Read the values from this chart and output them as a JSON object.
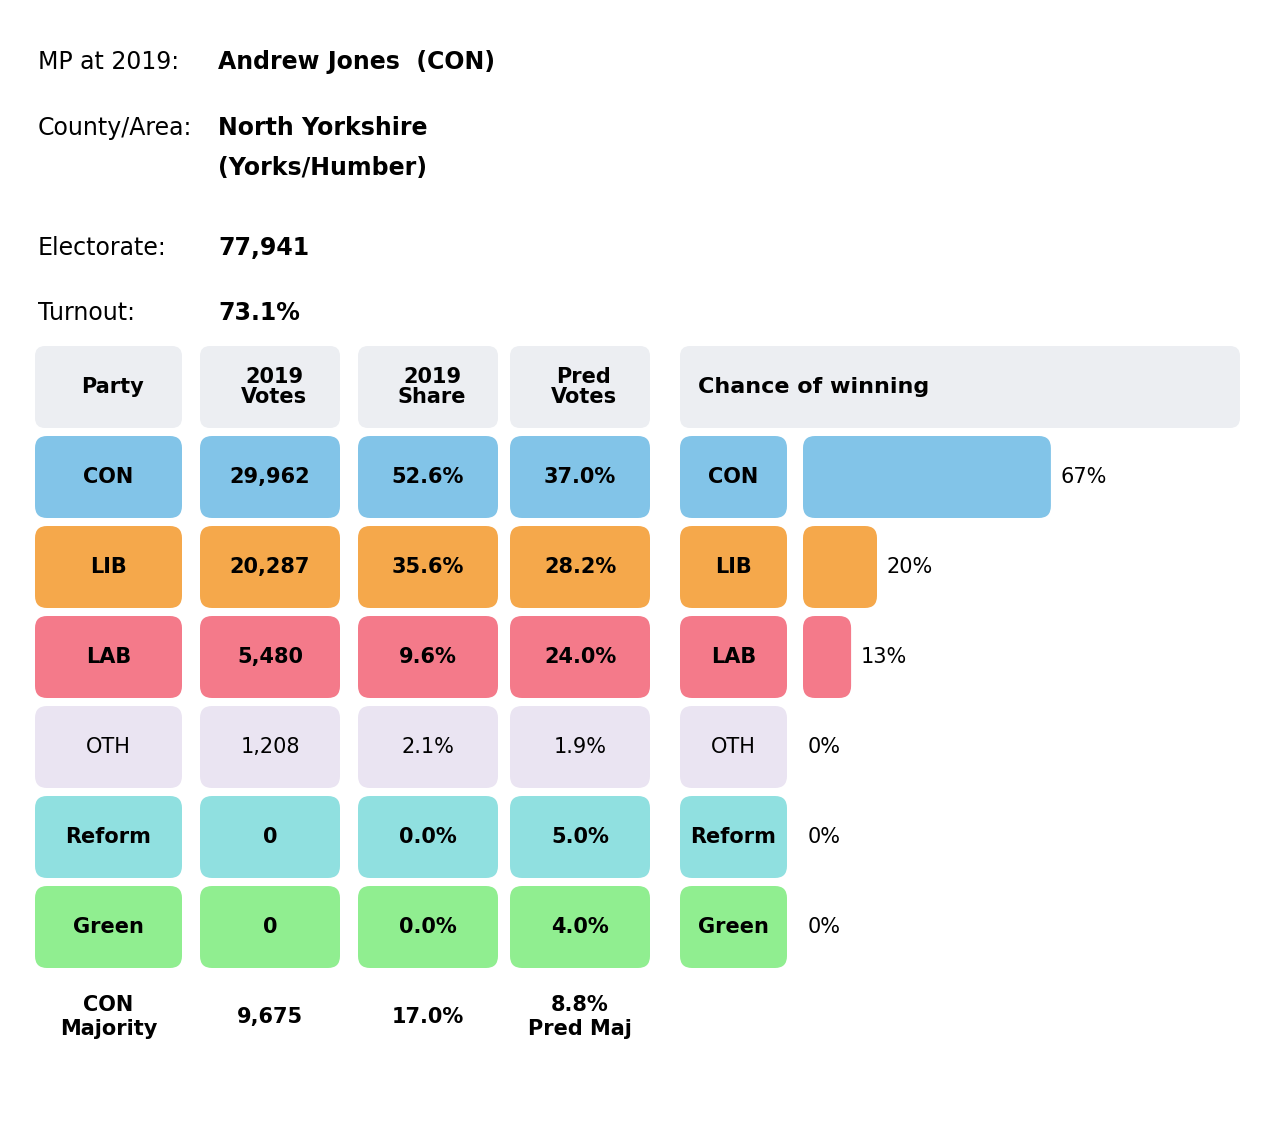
{
  "mp_label": "MP at 2019:",
  "mp_value": "Andrew Jones  (CON)",
  "county_label": "County/Area:",
  "county_value_line1": "North Yorkshire",
  "county_value_line2": "(Yorks/Humber)",
  "electorate_label": "Electorate:",
  "electorate_value": "77,941",
  "turnout_label": "Turnout:",
  "turnout_value": "73.1%",
  "table_headers": [
    "Party",
    "2019\nVotes",
    "2019\nShare",
    "Pred\nVotes"
  ],
  "parties": [
    "CON",
    "LIB",
    "LAB",
    "OTH",
    "Reform",
    "Green"
  ],
  "votes_2019": [
    "29,962",
    "20,287",
    "5,480",
    "1,208",
    "0",
    "0"
  ],
  "share_2019": [
    "52.6%",
    "35.6%",
    "9.6%",
    "2.1%",
    "0.0%",
    "0.0%"
  ],
  "pred_votes": [
    "37.0%",
    "28.2%",
    "24.0%",
    "1.9%",
    "5.0%",
    "4.0%"
  ],
  "majority_label": "CON\nMajority",
  "majority_votes": "9,675",
  "majority_share": "17.0%",
  "majority_pred": "8.8%\nPred Maj",
  "chance_header": "Chance of winning",
  "chance_parties": [
    "CON",
    "LIB",
    "LAB",
    "OTH",
    "Reform",
    "Green"
  ],
  "chance_values": [
    67,
    20,
    13,
    0,
    0,
    0
  ],
  "chance_max": 100,
  "party_colors": {
    "CON": "#82C4E8",
    "LIB": "#F5A84B",
    "LAB": "#F47A8A",
    "OTH": "#EAE4F2",
    "Reform": "#90E0E0",
    "Green": "#90EE90"
  },
  "header_bg": "#ECEEF2",
  "chance_header_bg": "#ECEEF2",
  "bg_color": "#FFFFFF"
}
